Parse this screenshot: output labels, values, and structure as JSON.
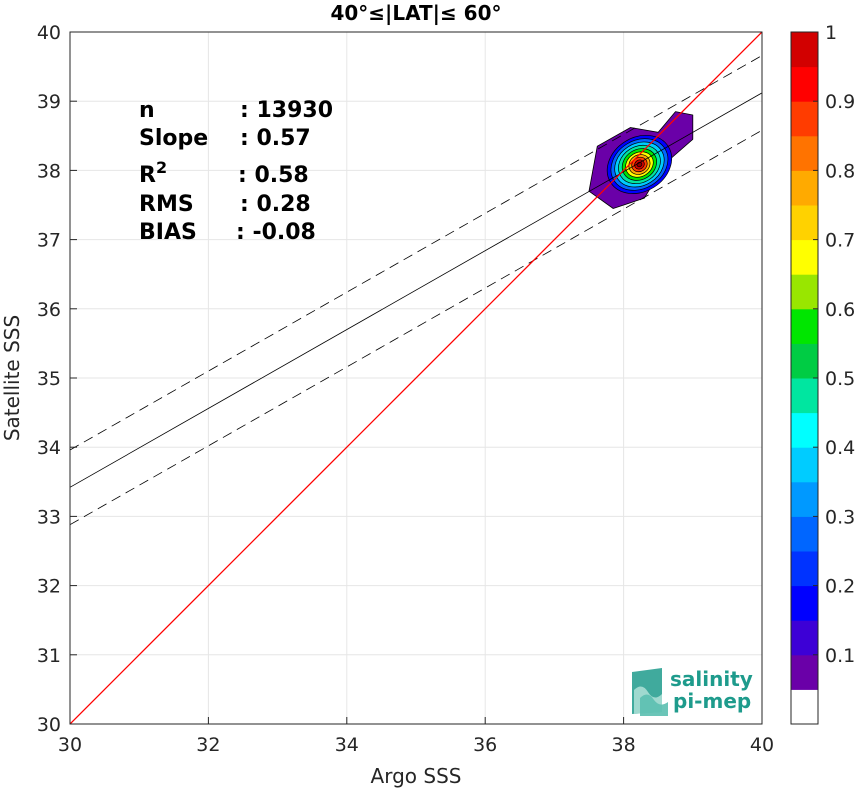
{
  "chart_data": {
    "type": "scatter",
    "subtype": "density-contour",
    "title": "40°≤|LAT|≤ 60°",
    "xlabel": "Argo SSS",
    "ylabel": "Satellite SSS",
    "xlim": [
      30,
      40
    ],
    "ylim": [
      30,
      40
    ],
    "xticks": [
      30,
      32,
      34,
      36,
      38,
      40
    ],
    "yticks": [
      30,
      31,
      32,
      33,
      34,
      35,
      36,
      37,
      38,
      39,
      40
    ],
    "grid": true,
    "stats": [
      {
        "label": "n",
        "value": ": 13930"
      },
      {
        "label": "Slope",
        "value": ": 0.57"
      },
      {
        "label": "R",
        "sup": "2",
        "value": ": 0.58"
      },
      {
        "label": "RMS",
        "value": ": 0.28"
      },
      {
        "label": "BIAS",
        "value": ": -0.08"
      }
    ],
    "identity_line": {
      "color": "#ff0000",
      "points": [
        [
          30,
          30
        ],
        [
          40,
          40
        ]
      ]
    },
    "fit_line": {
      "color": "#000000",
      "points": [
        [
          30,
          33.42
        ],
        [
          40,
          39.12
        ]
      ]
    },
    "fit_bounds": [
      {
        "points": [
          [
            30,
            33.96
          ],
          [
            40,
            39.66
          ]
        ]
      },
      {
        "points": [
          [
            30,
            32.88
          ],
          [
            40,
            38.58
          ]
        ]
      }
    ],
    "density": {
      "center": [
        38.2,
        38.1
      ],
      "extent": {
        "x": [
          37.5,
          39.0
        ],
        "y": [
          37.45,
          38.9
        ]
      },
      "peak": 1.0
    },
    "colorbar": {
      "min": 0,
      "max": 1,
      "levels": 20,
      "ticks": [
        0.1,
        0.2,
        0.3,
        0.4,
        0.5,
        0.6,
        0.7,
        0.8,
        0.9,
        1
      ],
      "colors": [
        "#ffffff",
        "#6a00a8",
        "#3d00d6",
        "#0000ff",
        "#0033ff",
        "#0066ff",
        "#0099ff",
        "#00ccff",
        "#00ffff",
        "#00e6a0",
        "#00cc44",
        "#00e600",
        "#99e600",
        "#ffff00",
        "#ffd200",
        "#ffaa00",
        "#ff7300",
        "#ff3c00",
        "#ff0000",
        "#d20000",
        "#8c0000"
      ]
    }
  },
  "logo": {
    "line1": "salinity",
    "line2": "pi-mep",
    "color": "#1e9b8c"
  }
}
